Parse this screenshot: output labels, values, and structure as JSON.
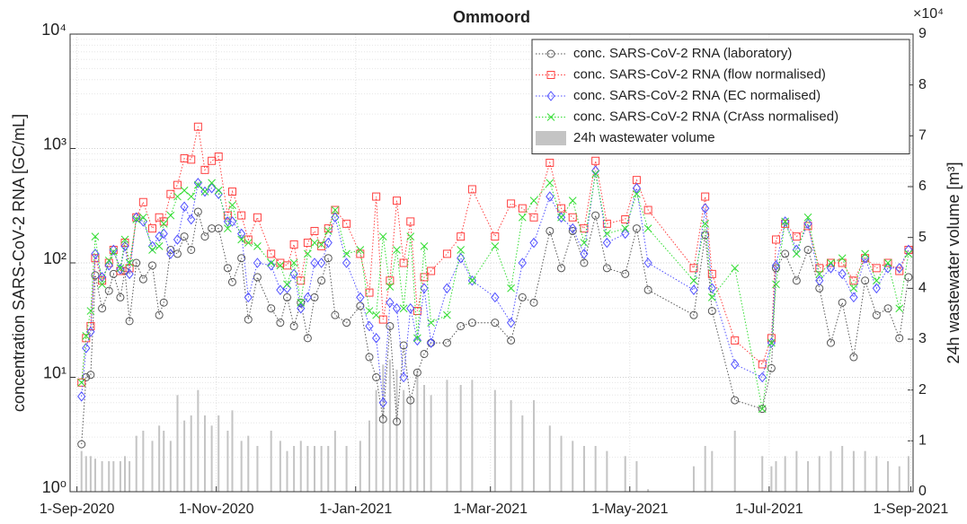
{
  "chart_data": {
    "type": "line",
    "title": "Ommoord",
    "y_label": "concentration SARS-CoV-2 RNA [GC/mL]",
    "y2_label": "24h wastewater volume [m³]",
    "y2_multiplier": "×10⁴",
    "log_y": true,
    "grid": true,
    "legend": "upper right",
    "xlim": [
      "2020-08-29",
      "2021-09-02"
    ],
    "xticks": [
      {
        "value": "2020-09-01",
        "label": "1-Sep-2020"
      },
      {
        "value": "2020-11-01",
        "label": "1-Nov-2020"
      },
      {
        "value": "2021-01-01",
        "label": "1-Jan-2021"
      },
      {
        "value": "2021-03-01",
        "label": "1-Mar-2021"
      },
      {
        "value": "2021-05-01",
        "label": "1-May-2021"
      },
      {
        "value": "2021-07-01",
        "label": "1-Jul-2021"
      },
      {
        "value": "2021-09-01",
        "label": "1-Sep-2021"
      }
    ],
    "ylim": [
      1,
      10000
    ],
    "yticks": [
      {
        "value": 1,
        "label": "10⁰"
      },
      {
        "value": 10,
        "label": "10¹"
      },
      {
        "value": 100,
        "label": "10²"
      },
      {
        "value": 1000,
        "label": "10³"
      },
      {
        "value": 10000,
        "label": "10⁴"
      }
    ],
    "y2lim": [
      0,
      90000
    ],
    "y2ticks": [
      0,
      {
        "value": 10000,
        "label": "1"
      },
      {
        "value": 20000,
        "label": "2"
      },
      {
        "value": 30000,
        "label": "3"
      },
      {
        "value": 40000,
        "label": "4"
      },
      {
        "value": 50000,
        "label": "5"
      },
      {
        "value": 60000,
        "label": "6"
      },
      {
        "value": 70000,
        "label": "7"
      },
      {
        "value": 80000,
        "label": "8"
      },
      {
        "value": 90000,
        "label": "9"
      }
    ],
    "x": [
      "2020-09-03",
      "2020-09-05",
      "2020-09-07",
      "2020-09-09",
      "2020-09-12",
      "2020-09-15",
      "2020-09-17",
      "2020-09-20",
      "2020-09-22",
      "2020-09-24",
      "2020-09-27",
      "2020-09-30",
      "2020-10-04",
      "2020-10-07",
      "2020-10-09",
      "2020-10-12",
      "2020-10-15",
      "2020-10-18",
      "2020-10-21",
      "2020-10-24",
      "2020-10-27",
      "2020-10-30",
      "2020-11-02",
      "2020-11-06",
      "2020-11-08",
      "2020-11-12",
      "2020-11-15",
      "2020-11-19",
      "2020-11-25",
      "2020-11-29",
      "2020-12-02",
      "2020-12-05",
      "2020-12-08",
      "2020-12-11",
      "2020-12-14",
      "2020-12-17",
      "2020-12-20",
      "2020-12-23",
      "2020-12-28",
      "2021-01-03",
      "2021-01-07",
      "2021-01-10",
      "2021-01-13",
      "2021-01-16",
      "2021-01-19",
      "2021-01-22",
      "2021-01-25",
      "2021-01-28",
      "2021-01-31",
      "2021-02-03",
      "2021-02-10",
      "2021-02-16",
      "2021-02-21",
      "2021-03-03",
      "2021-03-10",
      "2021-03-15",
      "2021-03-20",
      "2021-03-27",
      "2021-04-01",
      "2021-04-06",
      "2021-04-11",
      "2021-04-16",
      "2021-04-21",
      "2021-04-29",
      "2021-05-04",
      "2021-05-09",
      "2021-05-29",
      "2021-06-03",
      "2021-06-06",
      "2021-06-16",
      "2021-06-28",
      "2021-07-02",
      "2021-07-04",
      "2021-07-08",
      "2021-07-13",
      "2021-07-18",
      "2021-07-23",
      "2021-07-28",
      "2021-08-02",
      "2021-08-07",
      "2021-08-12",
      "2021-08-17",
      "2021-08-22",
      "2021-08-27",
      "2021-08-31"
    ],
    "series": [
      {
        "name": "conc. SARS-CoV-2 RNA (laboratory)",
        "color": "#555555",
        "marker": "circle",
        "values": [
          2.6,
          10,
          10.5,
          78,
          40,
          57,
          80,
          50,
          85,
          31,
          100,
          72,
          95,
          35,
          45,
          130,
          120,
          170,
          130,
          280,
          170,
          200,
          200,
          90,
          68,
          110,
          32,
          75,
          40,
          30,
          50,
          28,
          45,
          22,
          50,
          70,
          110,
          35,
          30,
          42,
          15,
          10,
          4.3,
          28,
          4.1,
          19,
          6.3,
          11,
          16,
          20,
          20,
          28,
          30,
          30,
          21,
          50,
          45,
          190,
          90,
          190,
          100,
          260,
          90,
          80,
          200,
          58,
          35,
          175,
          38,
          6.3,
          5.3,
          12,
          90,
          120,
          70,
          130,
          60,
          20,
          45,
          15,
          70,
          35,
          40,
          22,
          75
        ]
      },
      {
        "name": "conc. SARS-CoV-2 RNA (flow normalised)",
        "color": "#ff4040",
        "marker": "square",
        "values": [
          9,
          22,
          28,
          110,
          70,
          100,
          130,
          85,
          150,
          90,
          250,
          340,
          200,
          250,
          230,
          400,
          480,
          820,
          800,
          1550,
          650,
          780,
          850,
          260,
          420,
          260,
          160,
          250,
          120,
          100,
          95,
          145,
          70,
          150,
          190,
          140,
          200,
          290,
          220,
          120,
          55,
          380,
          32,
          70,
          350,
          100,
          230,
          38,
          75,
          85,
          120,
          170,
          440,
          170,
          330,
          300,
          250,
          750,
          300,
          250,
          200,
          780,
          220,
          240,
          530,
          290,
          90,
          380,
          80,
          21,
          13,
          22,
          160,
          220,
          170,
          210,
          90,
          100,
          100,
          70,
          110,
          90,
          100,
          85,
          130
        ]
      },
      {
        "name": "conc. SARS-CoV-2 RNA (EC normalised)",
        "color": "#5050ff",
        "marker": "diamond",
        "values": [
          6.8,
          18,
          25,
          120,
          75,
          95,
          130,
          88,
          140,
          80,
          250,
          230,
          140,
          170,
          180,
          120,
          160,
          310,
          240,
          500,
          420,
          450,
          400,
          230,
          230,
          180,
          50,
          100,
          95,
          58,
          60,
          80,
          40,
          50,
          100,
          100,
          150,
          250,
          100,
          50,
          28,
          22,
          6,
          45,
          40,
          10,
          40,
          21,
          60,
          20,
          60,
          110,
          70,
          50,
          30,
          100,
          150,
          380,
          250,
          200,
          120,
          640,
          150,
          180,
          450,
          100,
          58,
          300,
          60,
          13,
          10,
          20,
          95,
          230,
          130,
          220,
          70,
          90,
          80,
          50,
          110,
          60,
          90,
          90,
          130
        ]
      },
      {
        "name": "conc. SARS-CoV-2 RNA (CrAss normalised)",
        "color": "#33dd33",
        "marker": "x",
        "values": [
          9,
          23,
          38,
          170,
          65,
          105,
          125,
          90,
          160,
          100,
          240,
          250,
          130,
          140,
          220,
          260,
          380,
          430,
          380,
          480,
          420,
          500,
          430,
          200,
          320,
          160,
          150,
          140,
          100,
          95,
          65,
          100,
          45,
          120,
          150,
          145,
          190,
          290,
          120,
          130,
          38,
          35,
          170,
          62,
          130,
          40,
          170,
          22,
          140,
          30,
          35,
          130,
          70,
          140,
          60,
          250,
          350,
          500,
          250,
          350,
          150,
          600,
          180,
          200,
          400,
          200,
          70,
          220,
          50,
          90,
          5.3,
          20,
          65,
          230,
          120,
          250,
          80,
          100,
          110,
          60,
          120,
          70,
          100,
          40,
          120
        ]
      },
      {
        "name": "24h wastewater volume",
        "color": "#c4c4c4",
        "type": "bar",
        "axis": "y2",
        "values": [
          8000,
          7000,
          7000,
          6500,
          6000,
          6000,
          6000,
          6000,
          7000,
          6000,
          11000,
          12000,
          10000,
          13000,
          12000,
          10000,
          19000,
          14000,
          15000,
          20000,
          15000,
          13000,
          15000,
          12000,
          16000,
          10000,
          11000,
          9000,
          12000,
          10000,
          8000,
          9000,
          10000,
          9000,
          9000,
          9000,
          9000,
          12000,
          9000,
          10000,
          14000,
          20000,
          25000,
          26000,
          24000,
          20000,
          18000,
          24000,
          21000,
          19000,
          22000,
          21000,
          22000,
          20000,
          18000,
          15000,
          18000,
          13000,
          11000,
          10000,
          9000,
          9000,
          8000,
          7000,
          6000,
          500,
          5000,
          9000,
          8000,
          12000,
          7000,
          5000,
          6000,
          7000,
          8000,
          6000,
          7000,
          8000,
          9000,
          8000,
          8000,
          7000,
          6000,
          5000,
          7000
        ]
      }
    ]
  }
}
